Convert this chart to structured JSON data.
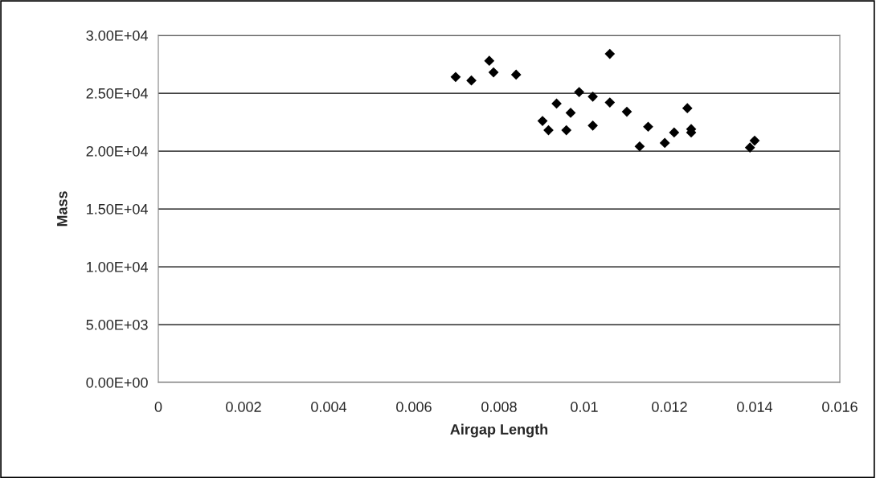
{
  "chart_data": {
    "type": "scatter",
    "xlabel": "Airgap Length",
    "ylabel": "Mass",
    "marker": "diamond",
    "grid": "y",
    "xlim": [
      0,
      0.016
    ],
    "xticks": [
      0,
      0.002,
      0.004,
      0.006,
      0.008,
      0.01,
      0.012,
      0.014,
      0.016
    ],
    "ylim": [
      0,
      30000
    ],
    "yticks": [
      {
        "value": 0,
        "label": "0.00E+00"
      },
      {
        "value": 5000,
        "label": "5.00E+03"
      },
      {
        "value": 10000,
        "label": "1.00E+04"
      },
      {
        "value": 15000,
        "label": "1.50E+04"
      },
      {
        "value": 20000,
        "label": "2.00E+04"
      },
      {
        "value": 25000,
        "label": "2.50E+04"
      },
      {
        "value": 30000,
        "label": "3.00E+04"
      }
    ],
    "series": [
      {
        "color": "#000000",
        "x": [
          0.00698,
          0.00735,
          0.00777,
          0.00787,
          0.0084,
          0.0106,
          0.00988,
          0.0102,
          0.00935,
          0.0106,
          0.00968,
          0.00902,
          0.00916,
          0.00958,
          0.0102,
          0.011,
          0.0115,
          0.0113,
          0.01189,
          0.01211,
          0.01242,
          0.01251,
          0.01251,
          0.01389,
          0.014
        ],
        "values": [
          26400,
          26100,
          27800,
          26800,
          26600,
          28400,
          25100,
          24700,
          24100,
          24200,
          23300,
          22600,
          21800,
          21800,
          22200,
          23400,
          22100,
          20400,
          20700,
          21600,
          23700,
          21900,
          21600,
          20300,
          20900
        ]
      }
    ]
  }
}
